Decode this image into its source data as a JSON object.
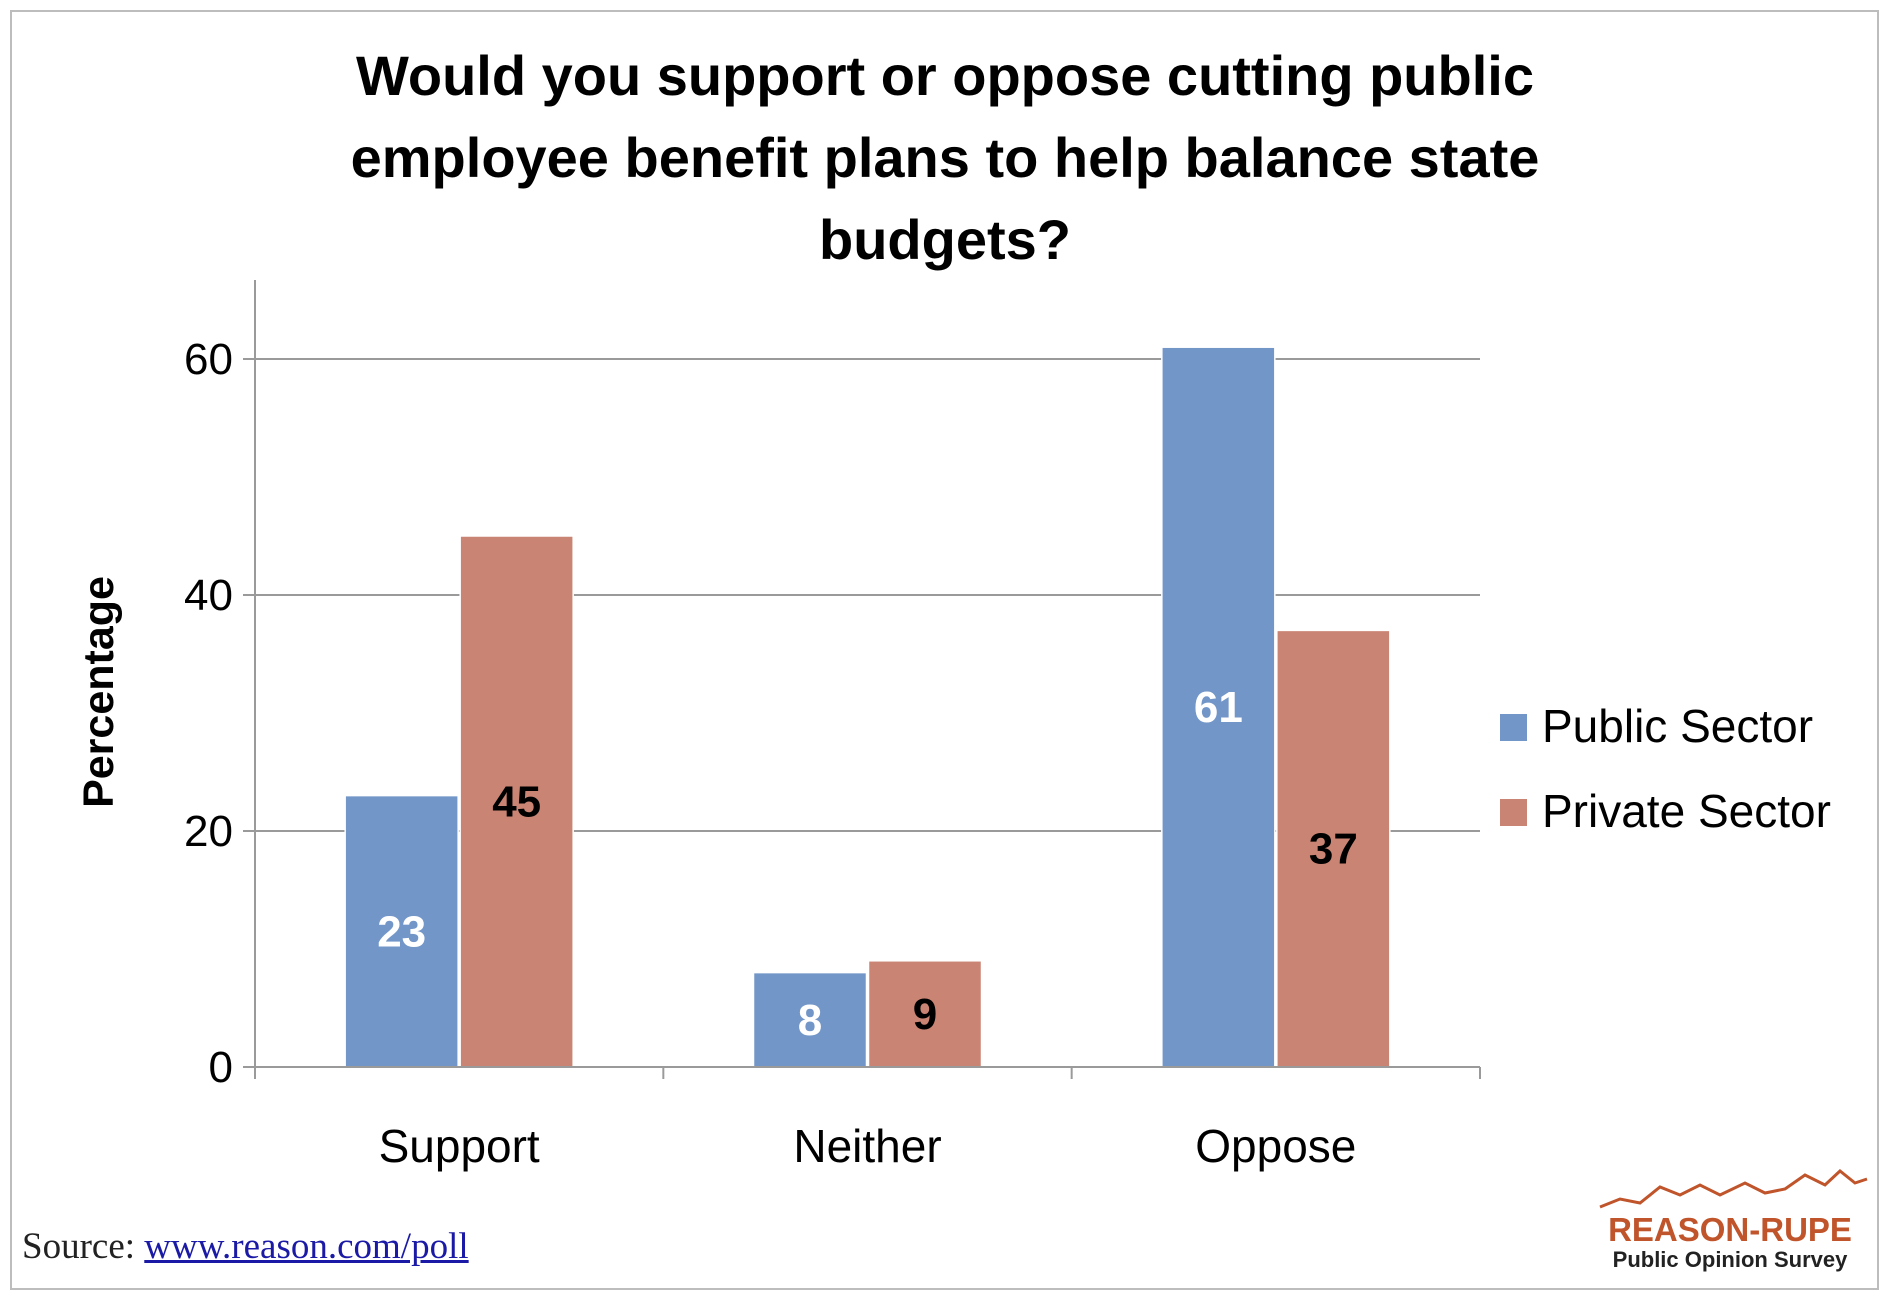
{
  "chart_data": {
    "type": "bar",
    "title_lines": [
      "Would you support or oppose cutting public",
      "employee benefit plans to help balance state",
      "budgets?"
    ],
    "xlabel": "",
    "ylabel": "Percentage",
    "categories": [
      "Support",
      "Neither",
      "Oppose"
    ],
    "series": [
      {
        "name": "Public Sector",
        "values": [
          23,
          8,
          61
        ],
        "color": "#7396c8",
        "label_color": "#ffffff"
      },
      {
        "name": "Private Sector",
        "values": [
          45,
          9,
          37
        ],
        "color": "#c98473",
        "label_color": "#000000"
      }
    ],
    "ylim": [
      0,
      65
    ],
    "yticks": [
      0,
      20,
      40,
      60
    ],
    "grid": true,
    "legend_position": "right"
  },
  "source": {
    "prefix": "Source:",
    "link_text": "www.reason.com/poll"
  },
  "logo": {
    "line1": "REASON-RUPE",
    "line2": "Public Opinion Survey",
    "color": "#c0542a",
    "text_color": "#222222"
  }
}
